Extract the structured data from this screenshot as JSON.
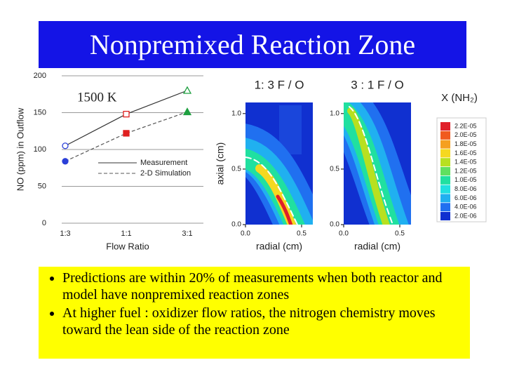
{
  "title": "Nonpremixed Reaction Zone",
  "bullets": [
    "Predictions are within 20% of measurements when both reactor and model have nonpremixed reaction zones",
    "At higher fuel : oxidizer flow ratios, the nitrogen chemistry moves toward the lean side of the reaction zone"
  ],
  "chart_data": [
    {
      "type": "line",
      "annotation": "1500 K",
      "x_label": "Flow Ratio",
      "y_label": "NO (ppm) in Outflow",
      "categories": [
        "1:3",
        "1:1",
        "3:1"
      ],
      "ylim": [
        0,
        200
      ],
      "yticks": [
        0,
        50,
        100,
        150,
        200
      ],
      "grid": true,
      "point_colors": [
        "#2b3fd8",
        "#e02020",
        "#1fa040"
      ],
      "markers": [
        "circle",
        "square",
        "triangle"
      ],
      "series": [
        {
          "name": "Measurement",
          "color": "#333333",
          "dash": false,
          "filled": false,
          "values": [
            105,
            148,
            180
          ]
        },
        {
          "name": "2-D Simulation",
          "color": "#555555",
          "dash": true,
          "filled": true,
          "values": [
            84,
            122,
            151
          ]
        }
      ]
    },
    {
      "type": "contour",
      "title": "1: 3 F / O",
      "x_label": "radial (cm)",
      "y_label": "axial (cm)",
      "xlim": [
        0,
        0.6
      ],
      "ylim": [
        0,
        1.1
      ],
      "xticks": [
        {
          "value": 0,
          "label": "0.0"
        },
        {
          "value": 0.5,
          "label": "0.5"
        }
      ],
      "yticks": [
        {
          "value": 0,
          "label": "0.0"
        },
        {
          "value": 0.5,
          "label": "0.5"
        },
        {
          "value": 1,
          "label": "1.0"
        }
      ]
    },
    {
      "type": "contour",
      "title": "3 : 1 F / O",
      "x_label": "radial (cm)",
      "xlim": [
        0,
        0.6
      ],
      "ylim": [
        0,
        1.1
      ],
      "xticks": [
        {
          "value": 0,
          "label": "0.0"
        },
        {
          "value": 0.5,
          "label": "0.5"
        }
      ],
      "yticks": [
        {
          "value": 0,
          "label": "0.0"
        },
        {
          "value": 0.5,
          "label": "0.5"
        },
        {
          "value": 1,
          "label": "1.0"
        }
      ],
      "colorbar": {
        "title": "X (NH₂)",
        "labels": [
          "2.2E-05",
          "2.0E-05",
          "1.8E-05",
          "1.6E-05",
          "1.4E-05",
          "1.2E-05",
          "1.0E-05",
          "8.0E-06",
          "6.0E-06",
          "4.0E-06",
          "2.0E-06"
        ],
        "colors": [
          "#e0202a",
          "#f05a1e",
          "#f5a020",
          "#f5d820",
          "#b8e020",
          "#60e060",
          "#20e0a0",
          "#20e0e0",
          "#20b0f0",
          "#2070f0",
          "#1030d0"
        ]
      }
    }
  ]
}
